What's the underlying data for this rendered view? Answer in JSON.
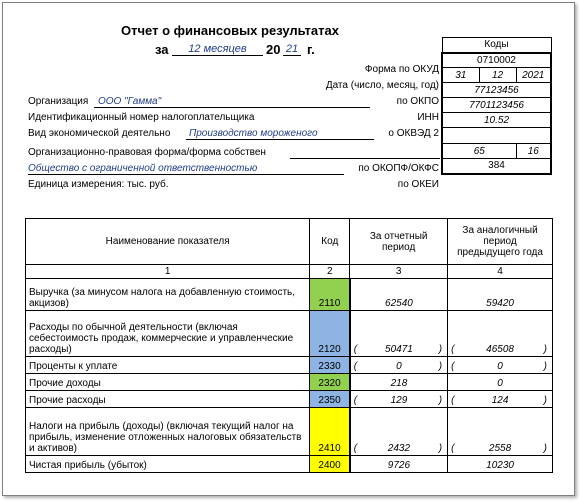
{
  "header": {
    "title": "Отчет о финансовых результатах",
    "za": "за",
    "period": "12 месяцев",
    "year_prefix": "20",
    "year_suffix": "21",
    "year_g": "г."
  },
  "codes_header": "Коды",
  "codes": {
    "okud": "0710002",
    "date_day": "31",
    "date_month": "12",
    "date_year": "2021",
    "okpo": "77123456",
    "inn": "7701123456",
    "okved": "10.52",
    "okopf": "65",
    "okfs": "16",
    "okei": "384"
  },
  "labels": {
    "okud": "Форма по ОКУД",
    "date": "Дата (число, месяц, год)",
    "org": "Организация",
    "okpo": "по ОКПО",
    "inn_label": "Идентификационный номер налогоплательщика",
    "inn": "ИНН",
    "activity": "Вид экономической деятельно",
    "okved": "о ОКВЭД 2",
    "legal_form": "Организационно-правовая форма/форма собствен",
    "okopf": "по ОКОПФ/ОКФС",
    "unit": "Единица измерения: тыс. руб.",
    "okei": "по ОКЕИ"
  },
  "values": {
    "org": "ООО \"Гамма\"",
    "activity": "Производство мороженого",
    "legal_form": "Общество с ограниченной ответственностью"
  },
  "table": {
    "headers": {
      "name": "Наименование показателя",
      "code": "Код",
      "current": "За отчетный период",
      "previous": "За аналогичный период предыдущего года"
    },
    "col_numbers": [
      "1",
      "2",
      "3",
      "4"
    ],
    "rows": [
      {
        "name": "Выручка (за минусом налога на добавленную стоимость, акцизов)",
        "code": "2110",
        "current": "62540",
        "previous": "59420",
        "paren": false
      },
      {
        "name": "Расходы по обычной деятельности (включая себестоимость продаж, коммерческие и управленческие расходы)",
        "code": "2120",
        "current": "50471",
        "previous": "46508",
        "paren": true
      },
      {
        "name": "Проценты к уплате",
        "code": "2330",
        "current": "0",
        "previous": "0",
        "paren": true
      },
      {
        "name": "Прочие доходы",
        "code": "2320",
        "current": "218",
        "previous": "0",
        "paren": false
      },
      {
        "name": "Прочие расходы",
        "code": "2350",
        "current": "129",
        "previous": "124",
        "paren": true
      },
      {
        "name": "Налоги на прибыль (доходы) (включая текущий налог на прибыль, изменение отложенных налоговых обязательств и активов)",
        "code": "2410",
        "current": "2432",
        "previous": "2558",
        "paren": true
      },
      {
        "name": "Чистая прибыль (убыток)",
        "code": "2400",
        "current": "9726",
        "previous": "10230",
        "paren": false
      }
    ]
  },
  "paren_open": "(",
  "paren_close": ")",
  "colors": {
    "green": "#92d050",
    "blue": "#8db4e2",
    "yellow": "#ffff00"
  }
}
